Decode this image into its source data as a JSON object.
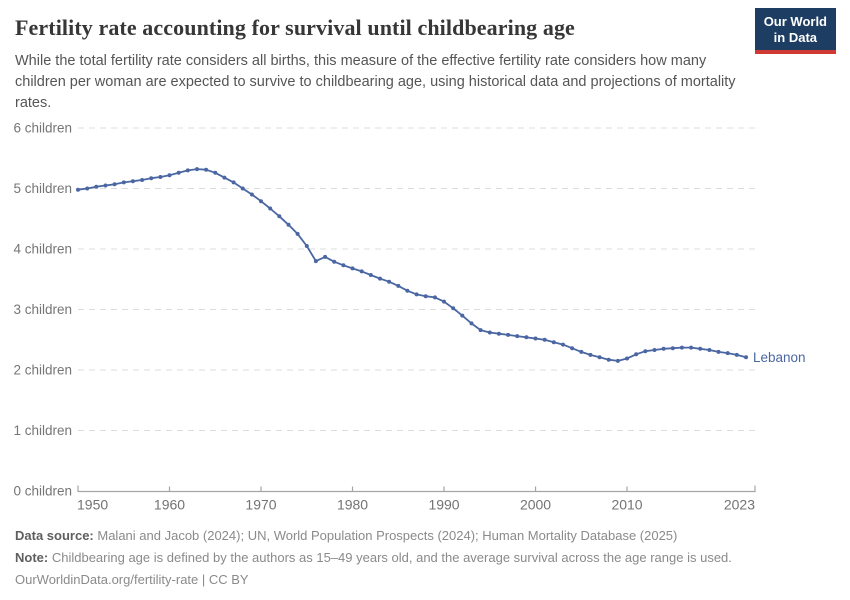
{
  "header": {
    "title": "Fertility rate accounting for survival until childbearing age",
    "subtitle": "While the total fertility rate considers all births, this measure of the effective fertility rate considers how many children per woman are expected to survive to childbearing age, using historical data and projections of mortality rates.",
    "logo": {
      "line1": "Our World",
      "line2": "in Data"
    }
  },
  "footer": {
    "source_label": "Data source:",
    "source_text": "Malani and Jacob (2024); UN, World Population Prospects (2024); Human Mortality Database (2025)",
    "note_label": "Note:",
    "note_text": "Childbearing age is defined by the authors as 15–49 years old, and the average survival across the age range is used.",
    "license_line": "OurWorldinData.org/fertility-rate | CC BY"
  },
  "colors": {
    "line": "#4a67a3",
    "grid": "#dcdcdc",
    "axis": "#a5a5a5",
    "tick_text": "#757575",
    "x_tick_text": "#737373",
    "logo_bg": "#1d3d63",
    "logo_accent": "#d03a34"
  },
  "chart_data": {
    "type": "line",
    "title": "Fertility rate accounting for survival until childbearing age",
    "xlabel": "",
    "ylabel": "",
    "xlim": [
      1950,
      2023
    ],
    "ylim": [
      0,
      6
    ],
    "xticks": [
      1950,
      1960,
      1970,
      1980,
      1990,
      2000,
      2010,
      2023
    ],
    "yticks": [
      0,
      1,
      2,
      3,
      4,
      5,
      6
    ],
    "ytick_label_suffix": " children",
    "grid": "horizontal-dashed",
    "legend": "series-end-label",
    "x": [
      1950,
      1951,
      1952,
      1953,
      1954,
      1955,
      1956,
      1957,
      1958,
      1959,
      1960,
      1961,
      1962,
      1963,
      1964,
      1965,
      1966,
      1967,
      1968,
      1969,
      1970,
      1971,
      1972,
      1973,
      1974,
      1975,
      1976,
      1977,
      1978,
      1979,
      1980,
      1981,
      1982,
      1983,
      1984,
      1985,
      1986,
      1987,
      1988,
      1989,
      1990,
      1991,
      1992,
      1993,
      1994,
      1995,
      1996,
      1997,
      1998,
      1999,
      2000,
      2001,
      2002,
      2003,
      2004,
      2005,
      2006,
      2007,
      2008,
      2009,
      2010,
      2011,
      2012,
      2013,
      2014,
      2015,
      2016,
      2017,
      2018,
      2019,
      2020,
      2021,
      2022,
      2023
    ],
    "series": [
      {
        "name": "Lebanon",
        "values": [
          4.98,
          5.0,
          5.03,
          5.05,
          5.07,
          5.1,
          5.12,
          5.14,
          5.17,
          5.19,
          5.22,
          5.26,
          5.3,
          5.32,
          5.31,
          5.26,
          5.18,
          5.1,
          5.0,
          4.9,
          4.79,
          4.67,
          4.54,
          4.4,
          4.25,
          4.05,
          3.8,
          3.87,
          3.79,
          3.73,
          3.68,
          3.63,
          3.57,
          3.51,
          3.46,
          3.39,
          3.31,
          3.25,
          3.22,
          3.2,
          3.13,
          3.02,
          2.9,
          2.77,
          2.66,
          2.62,
          2.6,
          2.58,
          2.56,
          2.54,
          2.52,
          2.5,
          2.46,
          2.42,
          2.36,
          2.3,
          2.25,
          2.21,
          2.17,
          2.15,
          2.19,
          2.26,
          2.31,
          2.33,
          2.35,
          2.36,
          2.37,
          2.37,
          2.35,
          2.33,
          2.3,
          2.28,
          2.25,
          2.21
        ]
      }
    ]
  }
}
